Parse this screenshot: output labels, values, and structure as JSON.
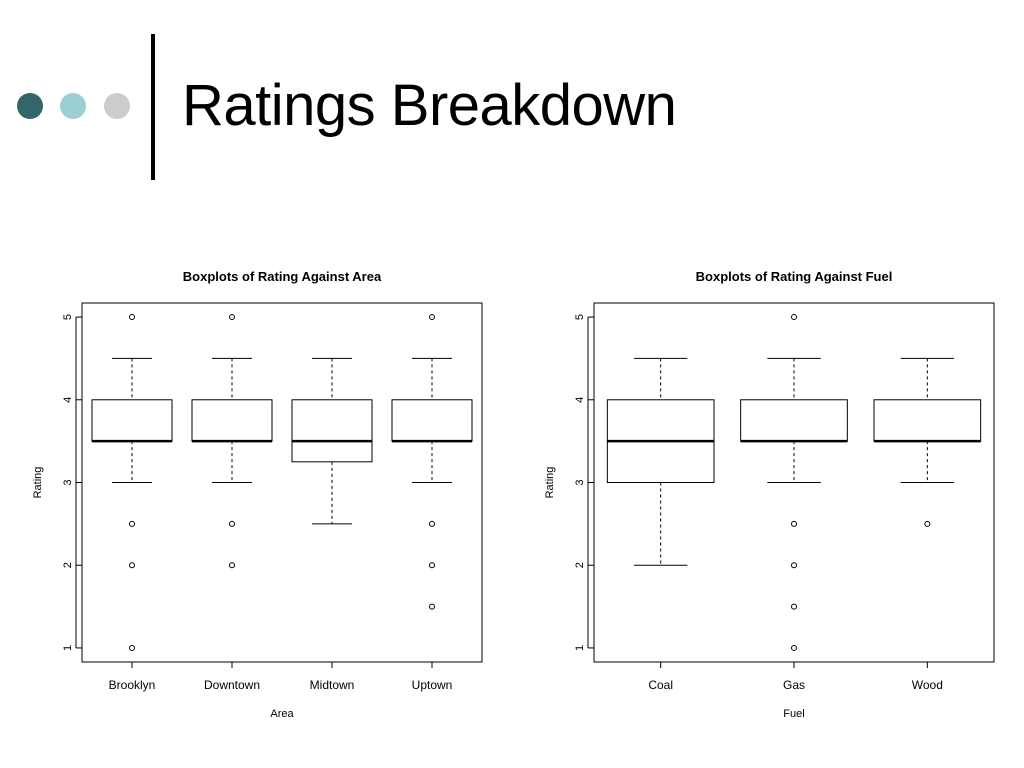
{
  "slide": {
    "title": "Ratings Breakdown",
    "dot_colors": [
      "#33666b",
      "#9bcfd3",
      "#cccccc"
    ]
  },
  "chart_data": [
    {
      "type": "boxplot",
      "title": "Boxplots of Rating Against Area",
      "xlabel": "Area",
      "ylabel": "Rating",
      "ylim": [
        0.83,
        5.17
      ],
      "yticks": [
        "1",
        "2",
        "3",
        "4",
        "5"
      ],
      "grid": false,
      "categories": [
        "Brooklyn",
        "Downtown",
        "Midtown",
        "Uptown"
      ],
      "boxes": [
        {
          "whisker_low": 3.0,
          "q1": 3.5,
          "median": 3.5,
          "q3": 4.0,
          "whisker_high": 4.5,
          "outliers": [
            5.0,
            2.5,
            2.0,
            1.0
          ]
        },
        {
          "whisker_low": 3.0,
          "q1": 3.5,
          "median": 3.5,
          "q3": 4.0,
          "whisker_high": 4.5,
          "outliers": [
            5.0,
            2.5,
            2.0
          ]
        },
        {
          "whisker_low": 2.5,
          "q1": 3.25,
          "median": 3.5,
          "q3": 4.0,
          "whisker_high": 4.5,
          "outliers": []
        },
        {
          "whisker_low": 3.0,
          "q1": 3.5,
          "median": 3.5,
          "q3": 4.0,
          "whisker_high": 4.5,
          "outliers": [
            5.0,
            2.5,
            2.0,
            1.5
          ]
        }
      ]
    },
    {
      "type": "boxplot",
      "title": "Boxplots of Rating Against Fuel",
      "xlabel": "Fuel",
      "ylabel": "Rating",
      "ylim": [
        0.83,
        5.17
      ],
      "yticks": [
        "1",
        "2",
        "3",
        "4",
        "5"
      ],
      "grid": false,
      "categories": [
        "Coal",
        "Gas",
        "Wood"
      ],
      "boxes": [
        {
          "whisker_low": 2.0,
          "q1": 3.0,
          "median": 3.5,
          "q3": 4.0,
          "whisker_high": 4.5,
          "outliers": []
        },
        {
          "whisker_low": 3.0,
          "q1": 3.5,
          "median": 3.5,
          "q3": 4.0,
          "whisker_high": 4.5,
          "outliers": [
            5.0,
            2.5,
            2.0,
            1.5,
            1.0
          ]
        },
        {
          "whisker_low": 3.0,
          "q1": 3.5,
          "median": 3.5,
          "q3": 4.0,
          "whisker_high": 4.5,
          "outliers": [
            2.5
          ]
        }
      ]
    }
  ]
}
